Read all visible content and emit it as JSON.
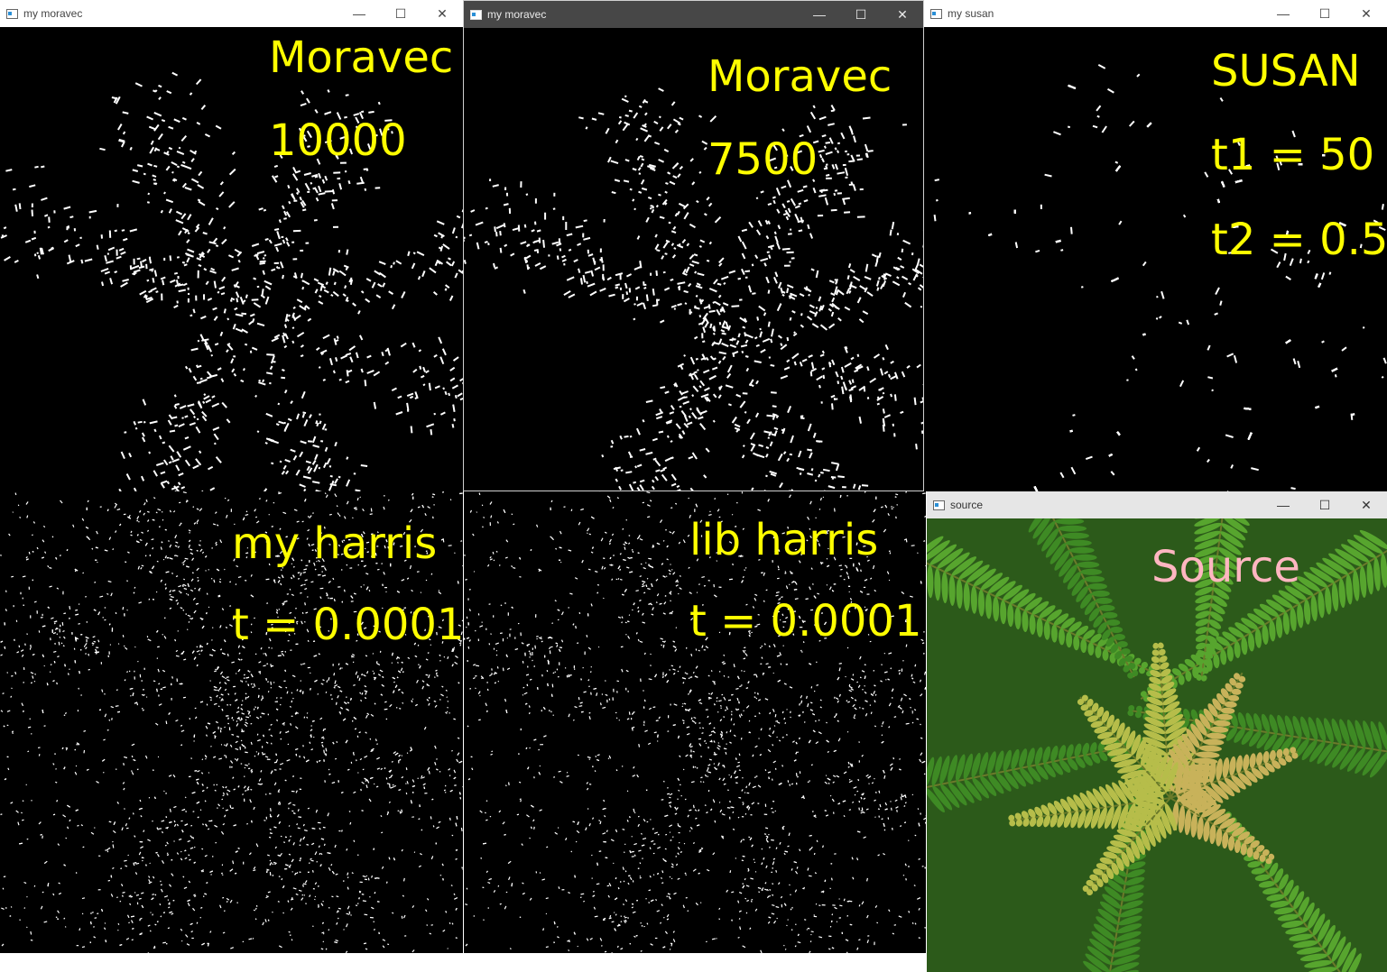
{
  "windows": {
    "moravec1": {
      "title": "my moravec",
      "label_algo": "Moravec",
      "label_param": "10000"
    },
    "moravec2": {
      "title": "my moravec",
      "label_algo": "Moravec",
      "label_param": "7500"
    },
    "susan": {
      "title": "my susan",
      "label_algo": "SUSAN",
      "label_t1": "t1  =  50",
      "label_t2": "t2  =  0.5"
    },
    "myharris": {
      "label_algo": "my  harris",
      "label_param": "t  =  0.0001"
    },
    "libharris": {
      "label_algo": "lib  harris",
      "label_param": "t  =  0.0001"
    },
    "source": {
      "title": "source",
      "label": "Source"
    }
  },
  "controls": {
    "minimize": "—",
    "maximize": "☐",
    "close": "✕"
  },
  "colors": {
    "label": "#ffff00",
    "source_label": "#ffb6c1",
    "fern_dark": "#2f6e1c",
    "fern_light": "#b8c24a"
  },
  "icons": {
    "app": "window-app-icon"
  }
}
